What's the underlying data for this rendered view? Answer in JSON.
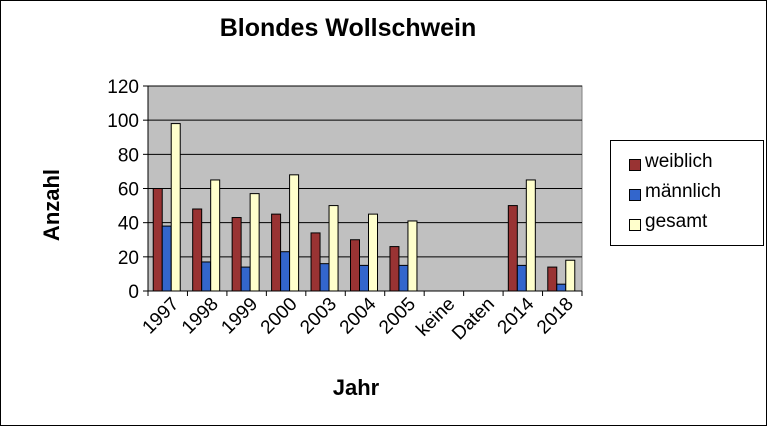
{
  "chart_data": {
    "type": "bar",
    "title": "Blondes Wollschwein",
    "xlabel": "Jahr",
    "ylabel": "Anzahl",
    "categories": [
      "1997",
      "1998",
      "1999",
      "2000",
      "2003",
      "2004",
      "2005",
      "keine",
      "Daten",
      "2014",
      "2018"
    ],
    "series": [
      {
        "name": "weiblich",
        "color": "#993333",
        "values": [
          60,
          48,
          43,
          45,
          34,
          30,
          26,
          null,
          null,
          50,
          14
        ]
      },
      {
        "name": "männlich",
        "color": "#3366CC",
        "values": [
          38,
          17,
          14,
          23,
          16,
          15,
          15,
          null,
          null,
          15,
          4
        ]
      },
      {
        "name": "gesamt",
        "color": "#FFFFCC",
        "values": [
          98,
          65,
          57,
          68,
          50,
          45,
          41,
          null,
          null,
          65,
          18
        ]
      }
    ],
    "ylim": [
      0,
      120
    ],
    "yticks": [
      0,
      20,
      40,
      60,
      80,
      100,
      120
    ],
    "grid": true,
    "plot_background": "#C0C0C0",
    "legend_position": "right"
  }
}
